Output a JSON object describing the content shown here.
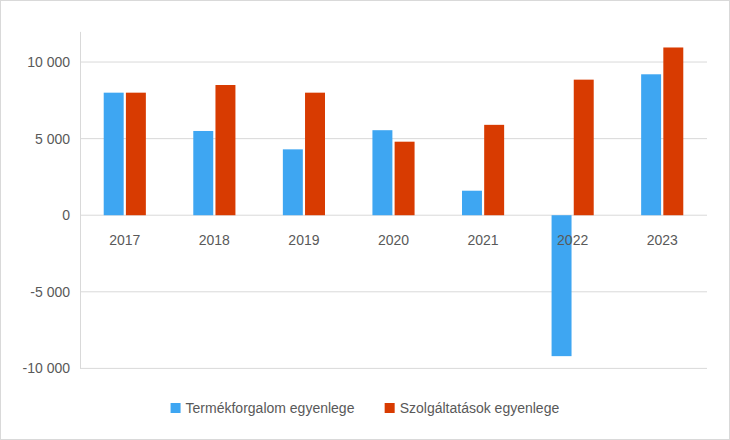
{
  "chart_data": {
    "type": "bar",
    "categories": [
      "2017",
      "2018",
      "2019",
      "2020",
      "2021",
      "2022",
      "2023"
    ],
    "series": [
      {
        "name": "Termékforgalom egyenlege",
        "color": "#3ea6f2",
        "values": [
          8000,
          5500,
          4300,
          5550,
          1600,
          -9200,
          9200
        ]
      },
      {
        "name": "Szolgáltatások egyenlege",
        "color": "#d83b01",
        "values": [
          8000,
          8500,
          8000,
          4800,
          5900,
          8850,
          10950
        ]
      }
    ],
    "ylim": [
      -10000,
      12000
    ],
    "yticks": [
      {
        "value": -10000,
        "label": "-10 000"
      },
      {
        "value": -5000,
        "label": "-5 000"
      },
      0,
      {
        "value": 5000,
        "label": "5 000"
      },
      {
        "value": 10000,
        "label": "10 000"
      }
    ],
    "grid": true,
    "legend": "bottom"
  }
}
